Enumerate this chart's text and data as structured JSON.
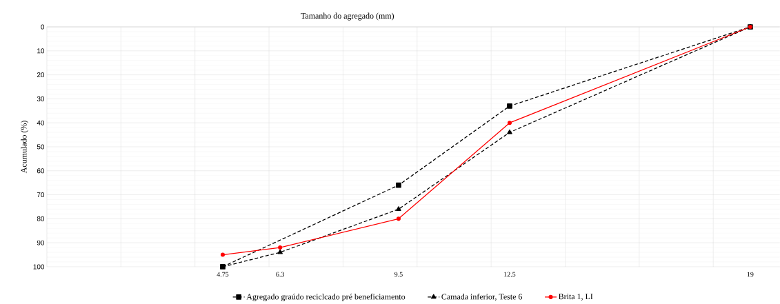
{
  "chart_data": {
    "type": "line",
    "title": "Tamanho do agregado (mm)",
    "ylabel": "Acumulado (%)",
    "xlim": [
      0,
      19.8
    ],
    "ylim": [
      100,
      0
    ],
    "xticks": [
      {
        "value": 2,
        "label": null
      },
      {
        "value": 4,
        "label": null
      },
      {
        "value": 6,
        "label": null
      },
      {
        "value": 8,
        "label": null
      },
      {
        "value": 10,
        "label": null
      },
      {
        "value": 12,
        "label": null
      },
      {
        "value": 14,
        "label": null
      },
      {
        "value": 16,
        "label": null
      },
      {
        "value": 18,
        "label": null
      },
      4.75,
      6.3,
      9.5,
      12.5,
      19
    ],
    "yticks": [
      0,
      10,
      20,
      30,
      40,
      50,
      60,
      70,
      80,
      90,
      100
    ],
    "grid": true,
    "legend": "bottom",
    "series": [
      {
        "name": "Agregado graúdo reciclcado pré beneficiamento",
        "color": "#000000",
        "marker": "square",
        "line_style": "dashed",
        "x": [
          4.75,
          6.3,
          9.5,
          12.5,
          19
        ],
        "values": [
          100,
          null,
          66,
          33,
          0
        ]
      },
      {
        "name": "Camada inferior, Teste 6",
        "color": "#000000",
        "marker": "triangle",
        "line_style": "dashed",
        "x": [
          4.75,
          6.3,
          9.5,
          12.5,
          19
        ],
        "values": [
          100,
          94,
          76,
          44,
          0
        ]
      },
      {
        "name": "Brita 1, LI",
        "color": "#ff0000",
        "marker": "circle",
        "line_style": "solid",
        "x": [
          4.75,
          6.3,
          9.5,
          12.5,
          19
        ],
        "values": [
          95,
          92,
          80,
          40,
          0
        ]
      }
    ]
  }
}
